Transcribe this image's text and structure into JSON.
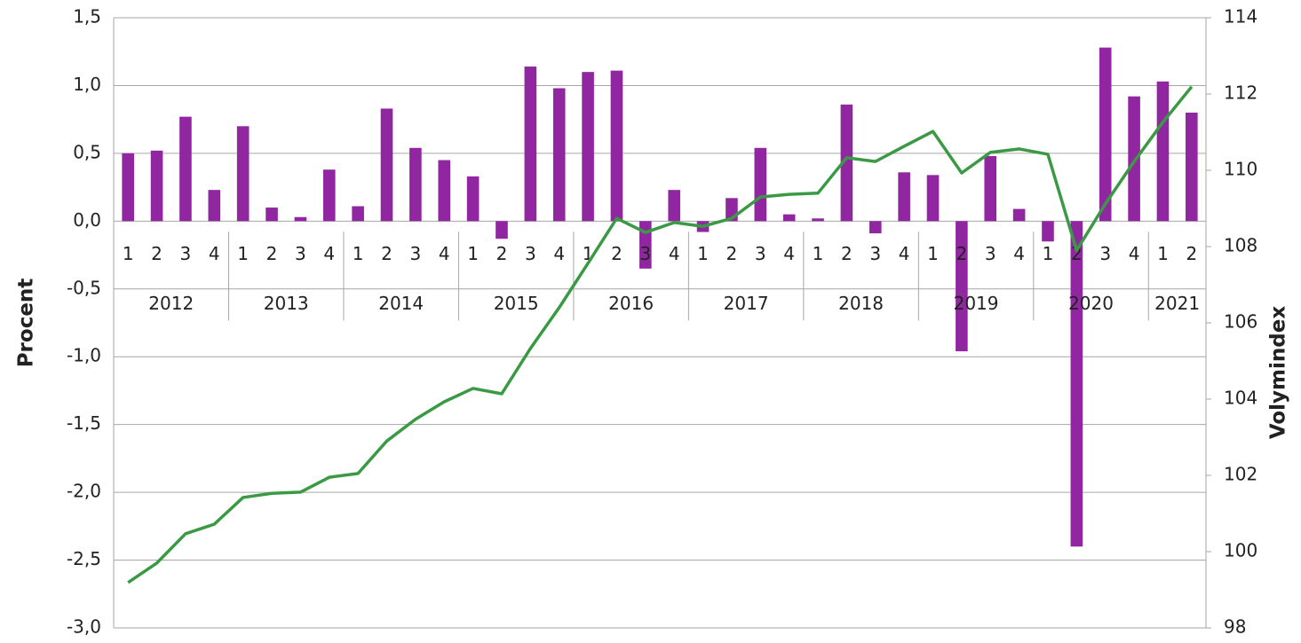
{
  "chart_data": {
    "type": "combo",
    "y_label": "Procent",
    "y2_label": "Volymindex",
    "categories": [
      "1",
      "2",
      "3",
      "4",
      "1",
      "2",
      "3",
      "4",
      "1",
      "2",
      "3",
      "4",
      "1",
      "2",
      "3",
      "4",
      "1",
      "2",
      "3",
      "4",
      "1",
      "2",
      "3",
      "4",
      "1",
      "2",
      "3",
      "4",
      "1",
      "2",
      "3",
      "4",
      "1",
      "2",
      "3",
      "4",
      "1",
      "2"
    ],
    "years": [
      "2012",
      "2013",
      "2014",
      "2015",
      "2016",
      "2017",
      "2018",
      "2019",
      "2020",
      "2021"
    ],
    "series": [
      {
        "type": "bar",
        "axis": "y",
        "color": "#9027a0",
        "values": [
          0.5,
          0.52,
          0.77,
          0.23,
          0.7,
          0.1,
          0.03,
          0.38,
          0.11,
          0.83,
          0.54,
          0.45,
          0.33,
          -0.13,
          1.14,
          0.98,
          1.1,
          1.11,
          -0.35,
          0.23,
          -0.08,
          0.17,
          0.54,
          0.05,
          0.02,
          0.86,
          -0.09,
          0.36,
          0.34,
          -0.96,
          0.48,
          0.09,
          -0.15,
          -2.4,
          1.28,
          0.92,
          1.03,
          0.8
        ]
      },
      {
        "type": "line",
        "axis": "y2",
        "color": "#3a9a44",
        "values": [
          99.19,
          99.7,
          100.47,
          100.72,
          101.42,
          101.53,
          101.56,
          101.95,
          102.05,
          102.9,
          103.47,
          103.93,
          104.28,
          104.14,
          105.33,
          106.4,
          107.56,
          108.74,
          108.37,
          108.63,
          108.53,
          108.74,
          109.3,
          109.37,
          109.4,
          110.33,
          110.23,
          110.63,
          111.02,
          109.93,
          110.47,
          110.56,
          110.42,
          107.9,
          109.12,
          110.23,
          111.26,
          112.19
        ]
      }
    ],
    "ylim": [
      -3.0,
      1.5
    ],
    "yticks": [
      {
        "value": 1.5,
        "label": "1,5"
      },
      {
        "value": 1.0,
        "label": "1,0"
      },
      {
        "value": 0.5,
        "label": "0,5"
      },
      {
        "value": 0.0,
        "label": "0,0"
      },
      {
        "value": -0.5,
        "label": "-0,5"
      },
      {
        "value": -1.0,
        "label": "-1,0"
      },
      {
        "value": -1.5,
        "label": "-1,5"
      },
      {
        "value": -2.0,
        "label": "-2,0"
      },
      {
        "value": -2.5,
        "label": "-2,5"
      },
      {
        "value": -3.0,
        "label": "-3,0"
      }
    ],
    "y2lim": [
      98,
      114
    ],
    "y2ticks": [
      98,
      100,
      102,
      104,
      106,
      108,
      110,
      112,
      114
    ],
    "grid": true
  }
}
